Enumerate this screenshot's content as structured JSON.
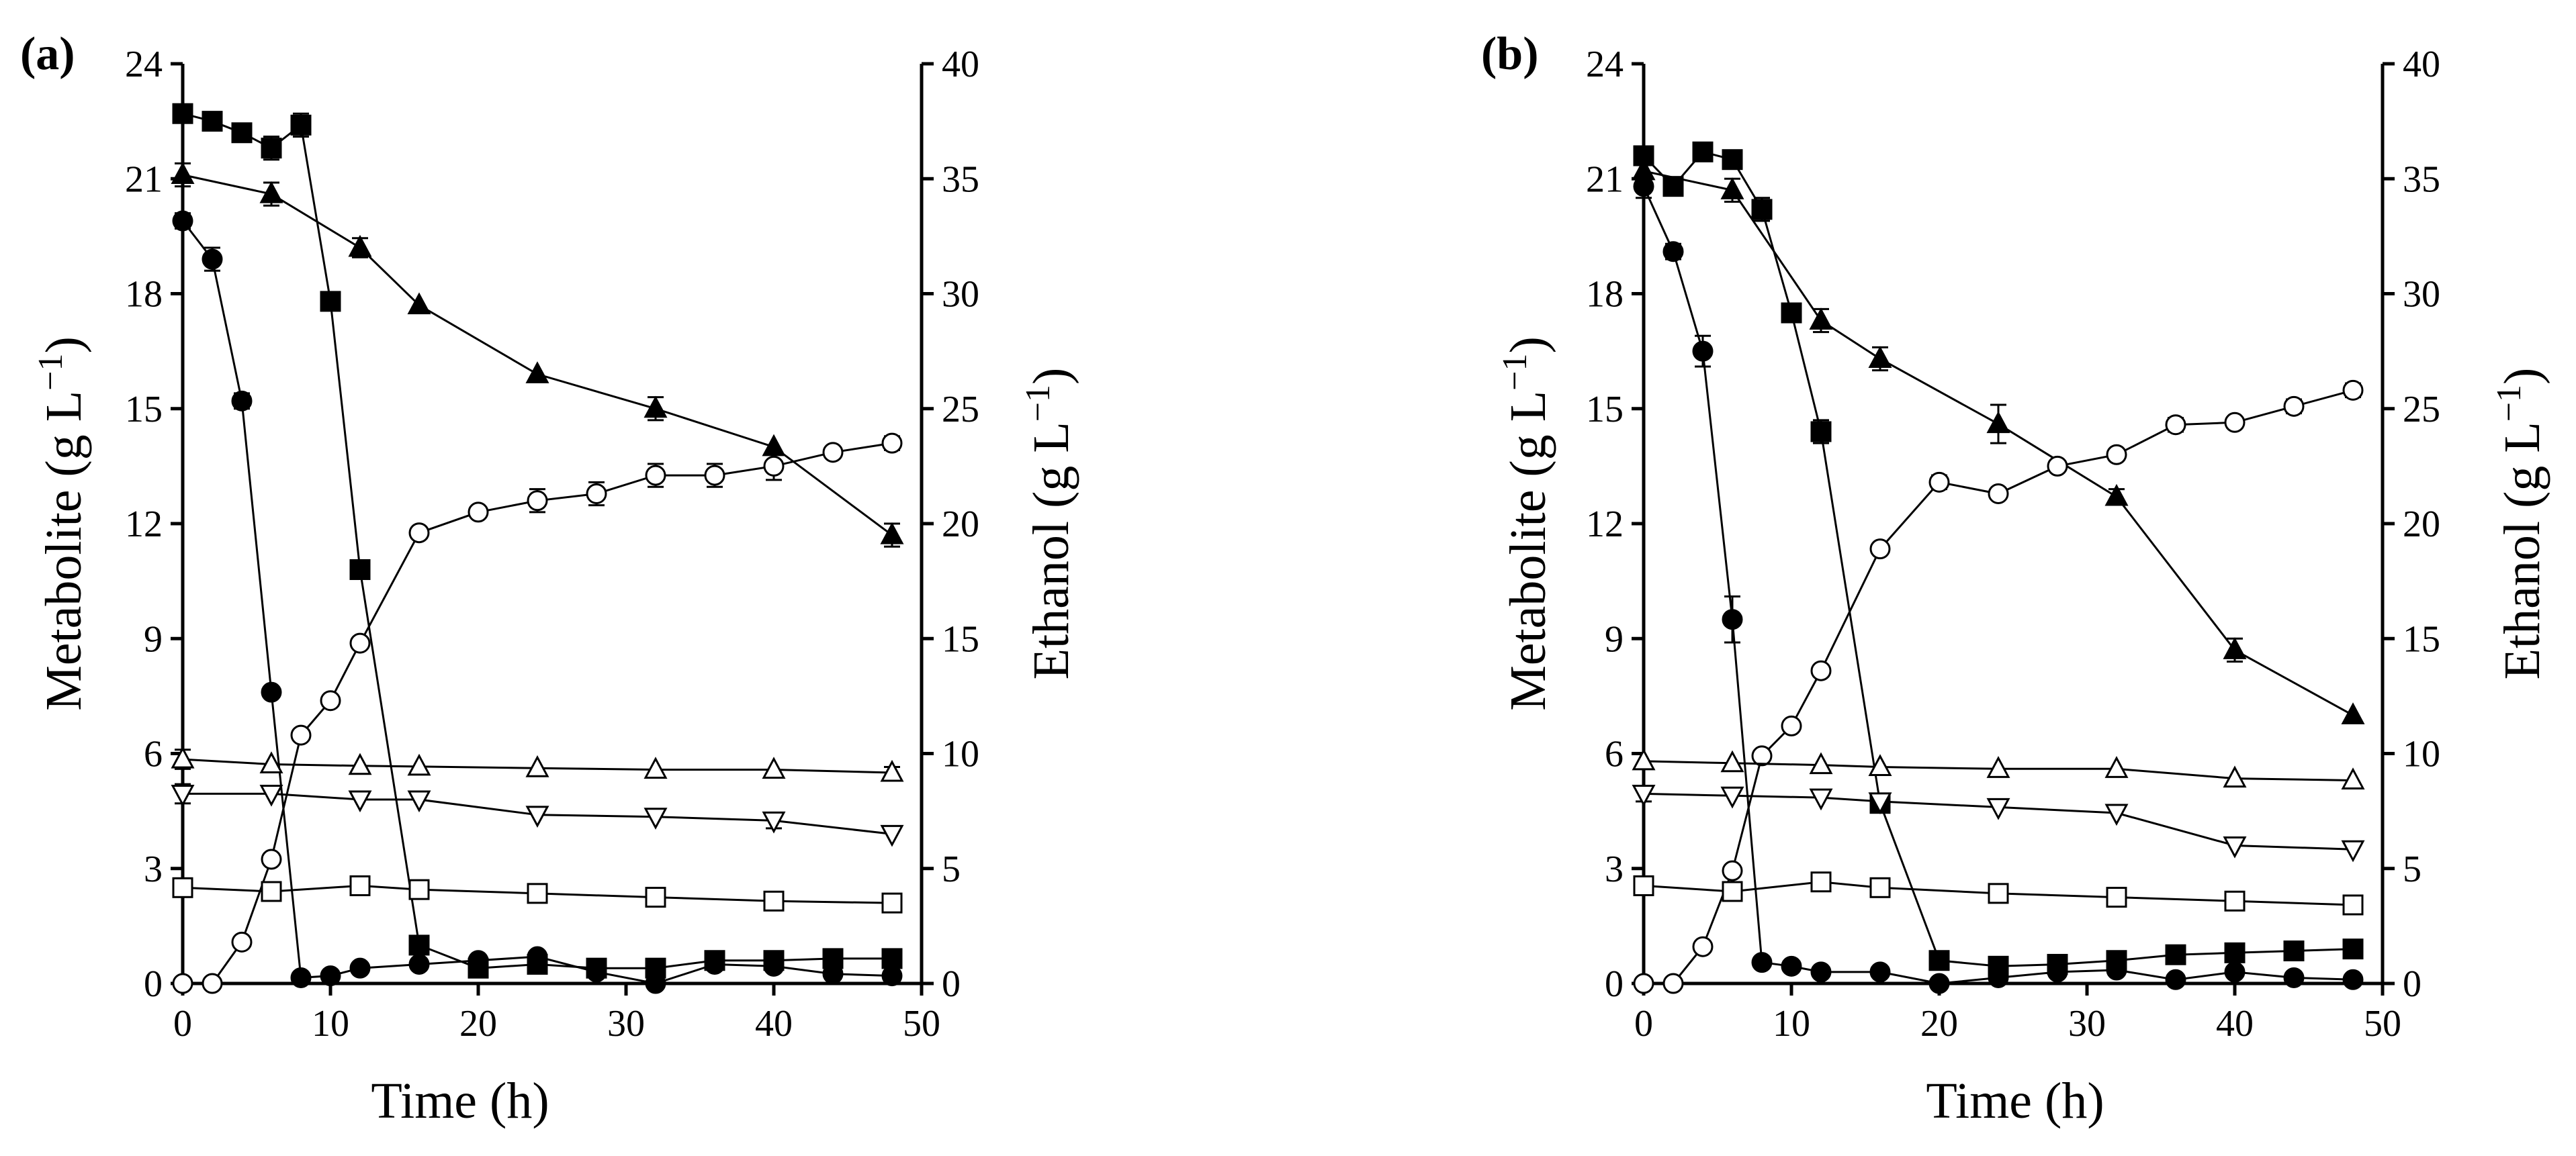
{
  "chart_data": [
    {
      "type": "line",
      "panel_label": "(a)",
      "xlabel": "Time (h)",
      "ylabel": "Metabolite (g L",
      "ylabel_sup": "−1",
      "ylabel_end": ")",
      "y2label": "Ethanol (g L",
      "y2label_sup": "−1",
      "y2label_end": ")",
      "xlim": [
        0,
        50
      ],
      "ylim": [
        0,
        24
      ],
      "y2lim": [
        0,
        40
      ],
      "xticks": [
        "0",
        "10",
        "20",
        "30",
        "40",
        "50"
      ],
      "yticks": [
        "0",
        "3",
        "6",
        "9",
        "12",
        "15",
        "18",
        "21",
        "24"
      ],
      "y2ticks": [
        "0",
        "5",
        "10",
        "15",
        "20",
        "25",
        "30",
        "35",
        "40"
      ],
      "series": [
        {
          "name": "filled-square",
          "marker": "square",
          "filled": true,
          "axis": "left",
          "x": [
            0,
            2,
            4,
            6,
            8,
            10,
            12,
            16,
            20,
            24,
            28,
            32,
            36,
            40,
            44,
            48
          ],
          "y": [
            22.7,
            22.5,
            22.2,
            21.8,
            22.4,
            17.8,
            10.8,
            1.0,
            0.4,
            0.5,
            0.4,
            0.4,
            0.6,
            0.6,
            0.65,
            0.65
          ],
          "err": [
            0.15,
            0.1,
            0.1,
            0.3,
            0.3,
            0.2,
            0.1,
            0,
            0,
            0.1,
            0,
            0,
            0.1,
            0.1,
            0,
            0
          ]
        },
        {
          "name": "filled-triangle",
          "marker": "triangle-up",
          "filled": true,
          "axis": "left",
          "x": [
            0,
            6,
            12,
            16,
            24,
            32,
            40,
            48
          ],
          "y": [
            21.1,
            20.6,
            19.2,
            17.7,
            15.9,
            15.0,
            14.0,
            11.7
          ],
          "err": [
            0.3,
            0.3,
            0.25,
            0,
            0,
            0.3,
            0,
            0.3
          ]
        },
        {
          "name": "filled-circle",
          "marker": "circle",
          "filled": true,
          "axis": "left",
          "x": [
            0,
            2,
            4,
            6,
            8,
            10,
            12,
            16,
            20,
            24,
            28,
            32,
            36,
            40,
            44,
            48
          ],
          "y": [
            19.9,
            18.9,
            15.2,
            7.6,
            0.15,
            0.2,
            0.4,
            0.5,
            0.6,
            0.7,
            0.3,
            0.0,
            0.5,
            0.45,
            0.25,
            0.2
          ],
          "err": [
            0.2,
            0.3,
            0.2,
            0,
            0,
            0,
            0,
            0,
            0,
            0,
            0,
            0,
            0,
            0,
            0,
            0
          ]
        },
        {
          "name": "open-circle-ethanol",
          "marker": "circle",
          "filled": false,
          "axis": "right",
          "x": [
            0,
            2,
            4,
            6,
            8,
            10,
            12,
            16,
            20,
            24,
            28,
            32,
            36,
            40,
            44,
            48
          ],
          "y": [
            0,
            0,
            1.8,
            5.4,
            10.8,
            12.3,
            14.8,
            19.6,
            20.5,
            21.0,
            21.3,
            22.1,
            22.1,
            22.5,
            23.1,
            23.5
          ],
          "err": [
            0,
            0,
            0,
            0,
            0,
            0,
            0,
            0,
            0,
            0.5,
            0.5,
            0.5,
            0.5,
            0.6,
            0,
            0.3
          ]
        },
        {
          "name": "open-triangle",
          "marker": "triangle-up",
          "filled": false,
          "axis": "left",
          "x": [
            0,
            6,
            12,
            16,
            24,
            32,
            40,
            48
          ],
          "y": [
            5.85,
            5.72,
            5.68,
            5.66,
            5.62,
            5.58,
            5.58,
            5.5
          ],
          "err": [
            0.25,
            0,
            0,
            0,
            0,
            0,
            0,
            0.15
          ]
        },
        {
          "name": "open-triangle-down",
          "marker": "triangle-down",
          "filled": false,
          "axis": "left",
          "x": [
            0,
            6,
            12,
            16,
            24,
            32,
            40,
            48
          ],
          "y": [
            4.95,
            4.95,
            4.8,
            4.8,
            4.4,
            4.35,
            4.25,
            3.9
          ],
          "err": [
            0.25,
            0,
            0,
            0,
            0,
            0,
            0.2,
            0
          ]
        },
        {
          "name": "open-square",
          "marker": "square",
          "filled": false,
          "axis": "left",
          "x": [
            0,
            6,
            12,
            16,
            24,
            32,
            40,
            48
          ],
          "y": [
            2.5,
            2.4,
            2.55,
            2.45,
            2.35,
            2.25,
            2.15,
            2.1
          ],
          "err": [
            0,
            0,
            0,
            0,
            0,
            0,
            0,
            0
          ]
        }
      ]
    },
    {
      "type": "line",
      "panel_label": "(b)",
      "xlabel": "Time (h)",
      "ylabel": "Metabolite (g L",
      "ylabel_sup": "−1",
      "ylabel_end": ")",
      "y2label": "Ethanol (g L",
      "y2label_sup": "−1",
      "y2label_end": ")",
      "xlim": [
        0,
        50
      ],
      "ylim": [
        0,
        24
      ],
      "y2lim": [
        0,
        40
      ],
      "xticks": [
        "0",
        "10",
        "20",
        "30",
        "40",
        "50"
      ],
      "yticks": [
        "0",
        "3",
        "6",
        "9",
        "12",
        "15",
        "18",
        "21",
        "24"
      ],
      "y2ticks": [
        "0",
        "5",
        "10",
        "15",
        "20",
        "25",
        "30",
        "35",
        "40"
      ],
      "series": [
        {
          "name": "filled-square",
          "marker": "square",
          "filled": true,
          "axis": "left",
          "x": [
            0,
            2,
            4,
            6,
            8,
            10,
            12,
            16,
            20,
            24,
            28,
            32,
            36,
            40,
            44,
            48
          ],
          "y": [
            21.6,
            20.8,
            21.7,
            21.5,
            20.2,
            17.5,
            14.4,
            4.7,
            0.6,
            0.45,
            0.5,
            0.6,
            0.75,
            0.8,
            0.85,
            0.9
          ],
          "err": [
            0.2,
            0.2,
            0.15,
            0.2,
            0.3,
            0.1,
            0.3,
            0.1,
            0.1,
            0,
            0,
            0,
            0,
            0,
            0,
            0
          ]
        },
        {
          "name": "filled-triangle",
          "marker": "triangle-up",
          "filled": true,
          "axis": "left",
          "x": [
            0,
            6,
            12,
            16,
            24,
            32,
            40,
            48
          ],
          "y": [
            21.2,
            20.7,
            17.3,
            16.3,
            14.6,
            12.7,
            8.7,
            7.0
          ],
          "err": [
            0.3,
            0.3,
            0.3,
            0.3,
            0.5,
            0.2,
            0.3,
            0
          ]
        },
        {
          "name": "filled-circle",
          "marker": "circle",
          "filled": true,
          "axis": "left",
          "x": [
            0,
            2,
            4,
            6,
            8,
            10,
            12,
            16,
            20,
            24,
            28,
            32,
            36,
            40,
            44,
            48
          ],
          "y": [
            20.8,
            19.1,
            16.5,
            9.5,
            0.55,
            0.45,
            0.3,
            0.3,
            0.0,
            0.15,
            0.3,
            0.35,
            0.1,
            0.3,
            0.15,
            0.1
          ],
          "err": [
            0.3,
            0.2,
            0.4,
            0.6,
            0,
            0,
            0,
            0,
            0,
            0,
            0,
            0,
            0,
            0,
            0,
            0
          ]
        },
        {
          "name": "open-circle-ethanol",
          "marker": "circle",
          "filled": false,
          "axis": "right",
          "x": [
            0,
            2,
            4,
            6,
            8,
            10,
            12,
            16,
            20,
            24,
            28,
            32,
            36,
            40,
            44,
            48
          ],
          "y": [
            0,
            0,
            1.6,
            4.9,
            9.9,
            11.2,
            13.6,
            18.9,
            21.8,
            21.3,
            22.5,
            23.0,
            24.3,
            24.4,
            25.1,
            25.8
          ],
          "err": [
            0,
            0,
            0,
            0,
            0,
            0,
            0,
            0,
            0.3,
            0,
            0,
            0,
            0.3,
            0,
            0.3,
            0.3
          ]
        },
        {
          "name": "open-triangle",
          "marker": "triangle-up",
          "filled": false,
          "axis": "left",
          "x": [
            0,
            6,
            12,
            16,
            24,
            32,
            40,
            48
          ],
          "y": [
            5.8,
            5.75,
            5.7,
            5.65,
            5.6,
            5.6,
            5.35,
            5.3
          ],
          "err": [
            0,
            0,
            0,
            0,
            0,
            0,
            0,
            0
          ]
        },
        {
          "name": "open-triangle-down",
          "marker": "triangle-down",
          "filled": false,
          "axis": "left",
          "x": [
            0,
            6,
            12,
            16,
            24,
            32,
            40,
            48
          ],
          "y": [
            4.95,
            4.9,
            4.85,
            4.75,
            4.6,
            4.45,
            3.6,
            3.5
          ],
          "err": [
            0.2,
            0,
            0,
            0,
            0,
            0,
            0,
            0
          ]
        },
        {
          "name": "open-square",
          "marker": "square",
          "filled": false,
          "axis": "left",
          "x": [
            0,
            6,
            12,
            16,
            24,
            32,
            40,
            48
          ],
          "y": [
            2.55,
            2.4,
            2.65,
            2.5,
            2.35,
            2.25,
            2.15,
            2.05
          ],
          "err": [
            0,
            0,
            0,
            0,
            0,
            0,
            0,
            0
          ]
        }
      ]
    }
  ]
}
